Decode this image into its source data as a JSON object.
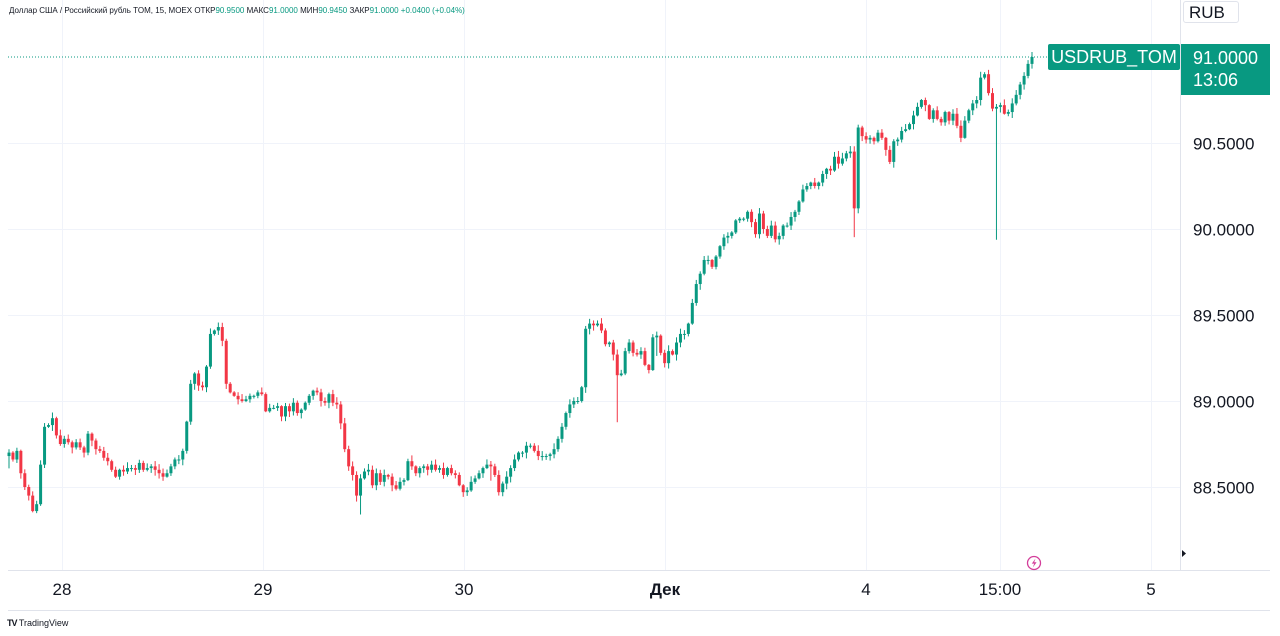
{
  "legend": {
    "prefix": "Доллар США / Российский рубль TOM, 15, MOEX",
    "open_label": "ОТКР",
    "open_value": "90.9500",
    "high_label": "МАКС",
    "high_value": "91.0000",
    "low_label": "МИН",
    "low_value": "90.9450",
    "close_label": "ЗАКР",
    "close_value": "91.0000",
    "change": "+0.0400 (+0.04%)"
  },
  "currency_button": "RUB",
  "symbol_tag": "USDRUB_TOM",
  "last_price": "91.0000",
  "countdown": "13:06",
  "watermark": "TradingView",
  "colors": {
    "up": "#089981",
    "down": "#f23645",
    "grid": "#f0f3fa",
    "text": "#131722"
  },
  "icons": {
    "scroll_right": "triangle-right-icon",
    "event": "lightning-circle-icon",
    "logo": "tradingview-logo-icon"
  },
  "chart_data": {
    "type": "candlestick",
    "timeframe": "15",
    "exchange": "MOEX",
    "ylim": [
      88.05,
      91.35
    ],
    "y_ticks": [
      "88.5000",
      "89.0000",
      "89.5000",
      "90.0000",
      "90.5000"
    ],
    "x_ticks": [
      "28",
      "29",
      "30",
      "Дек",
      "4",
      "15:00",
      "5"
    ],
    "price_line": 91.0,
    "series": [
      {
        "values": [
          88.7,
          88.66,
          88.71,
          88.58,
          88.5,
          88.45,
          88.36,
          88.4,
          88.63,
          88.85,
          88.86,
          88.9,
          88.8,
          88.75,
          88.78,
          88.76,
          88.73,
          88.76,
          88.73,
          88.7,
          88.81,
          88.77,
          88.72,
          88.71,
          88.67,
          88.65,
          88.6,
          88.56,
          88.6,
          88.59,
          88.61,
          88.61,
          88.6,
          88.64,
          88.6,
          88.61,
          88.62,
          88.6,
          88.58,
          88.56,
          88.58,
          88.62,
          88.66,
          88.66,
          88.71,
          88.88,
          89.1,
          89.16,
          89.09,
          89.08,
          89.2,
          89.39,
          89.41,
          89.43,
          89.35,
          89.1,
          89.05,
          89.03,
          89.01,
          89.0,
          89.01,
          89.03,
          89.03,
          89.05,
          89.04,
          88.94,
          88.96,
          88.96,
          88.97,
          88.91,
          88.97,
          88.94,
          88.99,
          88.93,
          88.95,
          88.99,
          89.03,
          89.06,
          89.05,
          89.0,
          88.99,
          89.04,
          88.99,
          88.98,
          88.87,
          88.72,
          88.62,
          88.57,
          88.45,
          88.55,
          88.59,
          88.6,
          88.51,
          88.58,
          88.53,
          88.57,
          88.56,
          88.51,
          88.49,
          88.53,
          88.54,
          88.65,
          88.62,
          88.58,
          88.61,
          88.62,
          88.6,
          88.63,
          88.6,
          88.61,
          88.57,
          88.61,
          88.58,
          88.57,
          88.51,
          88.47,
          88.48,
          88.53,
          88.55,
          88.58,
          88.61,
          88.63,
          88.62,
          88.57,
          88.47,
          88.52,
          88.56,
          88.61,
          88.66,
          88.7,
          88.7,
          88.74,
          88.74,
          88.71,
          88.68,
          88.68,
          88.68,
          88.69,
          88.72,
          88.78,
          88.85,
          88.93,
          88.98,
          89.0,
          89.0,
          89.08,
          89.42,
          89.45,
          89.44,
          89.45,
          89.41,
          89.33,
          89.34,
          89.27,
          89.15,
          89.16,
          89.29,
          89.34,
          89.28,
          89.27,
          89.29,
          89.21,
          89.18,
          89.37,
          89.38,
          89.28,
          89.22,
          89.29,
          89.27,
          89.34,
          89.39,
          89.39,
          89.45,
          89.57,
          89.68,
          89.74,
          89.82,
          89.82,
          89.78,
          89.84,
          89.9,
          89.95,
          89.96,
          89.98,
          90.05,
          90.06,
          90.06,
          90.1,
          90.04,
          89.97,
          90.09,
          90.0,
          89.96,
          90.02,
          89.94,
          89.96,
          90.02,
          90.02,
          90.07,
          90.1,
          90.16,
          90.23,
          90.25,
          90.27,
          90.25,
          90.27,
          90.32,
          90.35,
          90.34,
          90.42,
          90.38,
          90.41,
          90.44,
          90.45,
          90.12,
          90.59,
          90.54,
          90.52,
          90.53,
          90.51,
          90.56,
          90.53,
          90.46,
          90.39,
          90.51,
          90.52,
          90.57,
          90.58,
          90.61,
          90.66,
          90.71,
          90.75,
          90.72,
          90.64,
          90.69,
          90.64,
          90.62,
          90.68,
          90.63,
          90.67,
          90.6,
          90.53,
          90.63,
          90.69,
          90.73,
          90.75,
          90.88,
          90.9,
          90.79,
          90.7,
          90.71,
          90.72,
          90.67,
          90.68,
          90.73,
          90.78,
          90.84,
          90.89,
          90.96,
          91.0
        ]
      }
    ]
  }
}
